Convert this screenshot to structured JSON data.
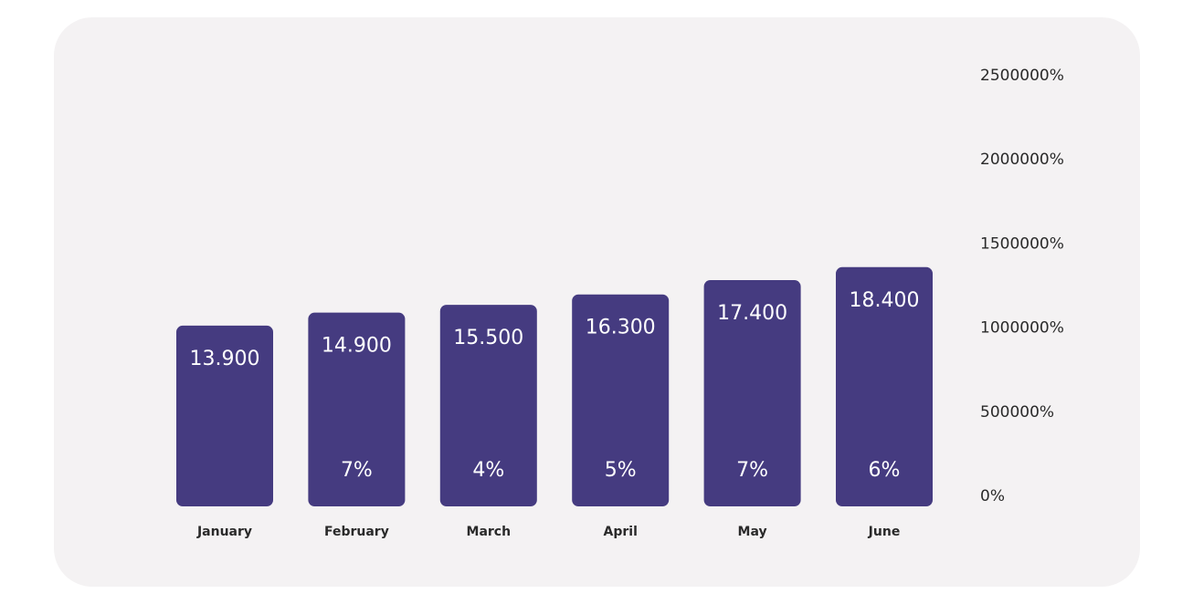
{
  "chart_data": {
    "type": "bar",
    "categories": [
      "January",
      "February",
      "March",
      "April",
      "May",
      "June"
    ],
    "values": [
      13.9,
      14.9,
      15.5,
      16.3,
      17.4,
      18.4
    ],
    "value_labels": [
      "13.900",
      "14.900",
      "15.500",
      "16.300",
      "17.400",
      "18.400"
    ],
    "growth_labels": [
      "",
      "7%",
      "4%",
      "5%",
      "7%",
      "6%"
    ],
    "y_tick_labels": [
      "0%",
      "500000%",
      "1000000%",
      "1500000%",
      "2000000%",
      "2500000%"
    ],
    "ylim": [
      0,
      25
    ],
    "y_axis_position": "right",
    "grid": false,
    "legend": "none",
    "bar_color": "#453b80",
    "background_color": "#f4f2f3"
  }
}
